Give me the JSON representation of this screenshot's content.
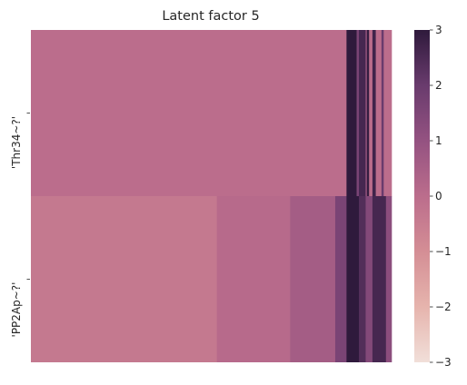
{
  "chart_data": {
    "type": "heatmap",
    "title": "Latent factor 5",
    "rows": [
      "'Thr34~?'",
      "'PP2Ap~?'"
    ],
    "xlabel": "",
    "ylabel": "",
    "n_columns": 320,
    "colorbar": {
      "range": [
        -3,
        3
      ],
      "ticks": [
        3,
        2,
        1,
        0,
        -1,
        -2,
        -3
      ],
      "tick_labels": [
        "3",
        "2",
        "1",
        "0",
        "−1",
        "−2",
        "−3"
      ],
      "colors": [
        "#f1dfd9",
        "#e6b4ad",
        "#d48e95",
        "#bb6d8c",
        "#945281",
        "#693b6d",
        "#2f1a3c"
      ]
    },
    "row_segments": [
      {
        "row": "'Thr34~?'",
        "segments": [
          {
            "from": 0,
            "to": 279,
            "value": 0.0
          },
          {
            "from": 280,
            "to": 288,
            "value": 3.0
          },
          {
            "from": 289,
            "to": 290,
            "value": 1.6
          },
          {
            "from": 291,
            "to": 296,
            "value": 2.6
          },
          {
            "from": 297,
            "to": 297,
            "value": 0.6
          },
          {
            "from": 298,
            "to": 299,
            "value": 2.9
          },
          {
            "from": 300,
            "to": 302,
            "value": 0.0
          },
          {
            "from": 303,
            "to": 305,
            "value": 2.7
          },
          {
            "from": 306,
            "to": 310,
            "value": 0.0
          },
          {
            "from": 311,
            "to": 312,
            "value": 2.0
          },
          {
            "from": 313,
            "to": 319,
            "value": 0.0
          }
        ]
      },
      {
        "row": "'PP2Ap~?'",
        "segments": [
          {
            "from": 0,
            "to": 164,
            "value": -0.35
          },
          {
            "from": 165,
            "to": 229,
            "value": 0.1
          },
          {
            "from": 230,
            "to": 269,
            "value": 0.6
          },
          {
            "from": 270,
            "to": 279,
            "value": 1.6
          },
          {
            "from": 280,
            "to": 290,
            "value": 3.0
          },
          {
            "from": 291,
            "to": 296,
            "value": 2.4
          },
          {
            "from": 297,
            "to": 302,
            "value": 1.4
          },
          {
            "from": 303,
            "to": 314,
            "value": 2.6
          },
          {
            "from": 315,
            "to": 319,
            "value": 1.2
          }
        ]
      }
    ]
  }
}
